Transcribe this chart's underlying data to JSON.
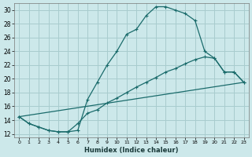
{
  "xlabel": "Humidex (Indice chaleur)",
  "bg_color": "#cce8ea",
  "grid_color": "#a8ccce",
  "line_color": "#1a6b6b",
  "xlim": [
    -0.5,
    23.5
  ],
  "ylim": [
    11.5,
    31.0
  ],
  "xticks": [
    0,
    1,
    2,
    3,
    4,
    5,
    6,
    7,
    8,
    9,
    10,
    11,
    12,
    13,
    14,
    15,
    16,
    17,
    18,
    19,
    20,
    21,
    22,
    23
  ],
  "yticks": [
    12,
    14,
    16,
    18,
    20,
    22,
    24,
    26,
    28,
    30
  ],
  "series1_x": [
    0,
    1,
    2,
    3,
    4,
    5,
    6,
    7,
    8,
    9,
    10,
    11,
    12,
    13,
    14,
    15,
    16,
    17,
    18,
    19,
    20,
    21,
    22,
    23
  ],
  "series1_y": [
    14.5,
    13.5,
    13.0,
    12.5,
    12.3,
    12.3,
    12.5,
    17.0,
    19.5,
    22.0,
    24.0,
    26.5,
    27.2,
    29.2,
    30.5,
    30.5,
    30.0,
    29.5,
    28.5,
    24.0,
    23.0,
    21.0,
    21.0,
    19.5
  ],
  "series2_x": [
    0,
    1,
    2,
    3,
    4,
    5,
    6,
    7,
    8,
    9,
    10,
    11,
    12,
    13,
    14,
    15,
    16,
    17,
    18,
    19,
    20,
    21,
    22,
    23
  ],
  "series2_y": [
    14.5,
    13.5,
    13.0,
    12.5,
    12.3,
    12.3,
    13.5,
    15.0,
    15.5,
    16.5,
    17.2,
    18.0,
    18.8,
    19.5,
    20.2,
    21.0,
    21.5,
    22.2,
    22.8,
    23.2,
    23.0,
    21.0,
    21.0,
    19.5
  ],
  "series3_x": [
    0,
    23
  ],
  "series3_y": [
    14.5,
    19.5
  ]
}
